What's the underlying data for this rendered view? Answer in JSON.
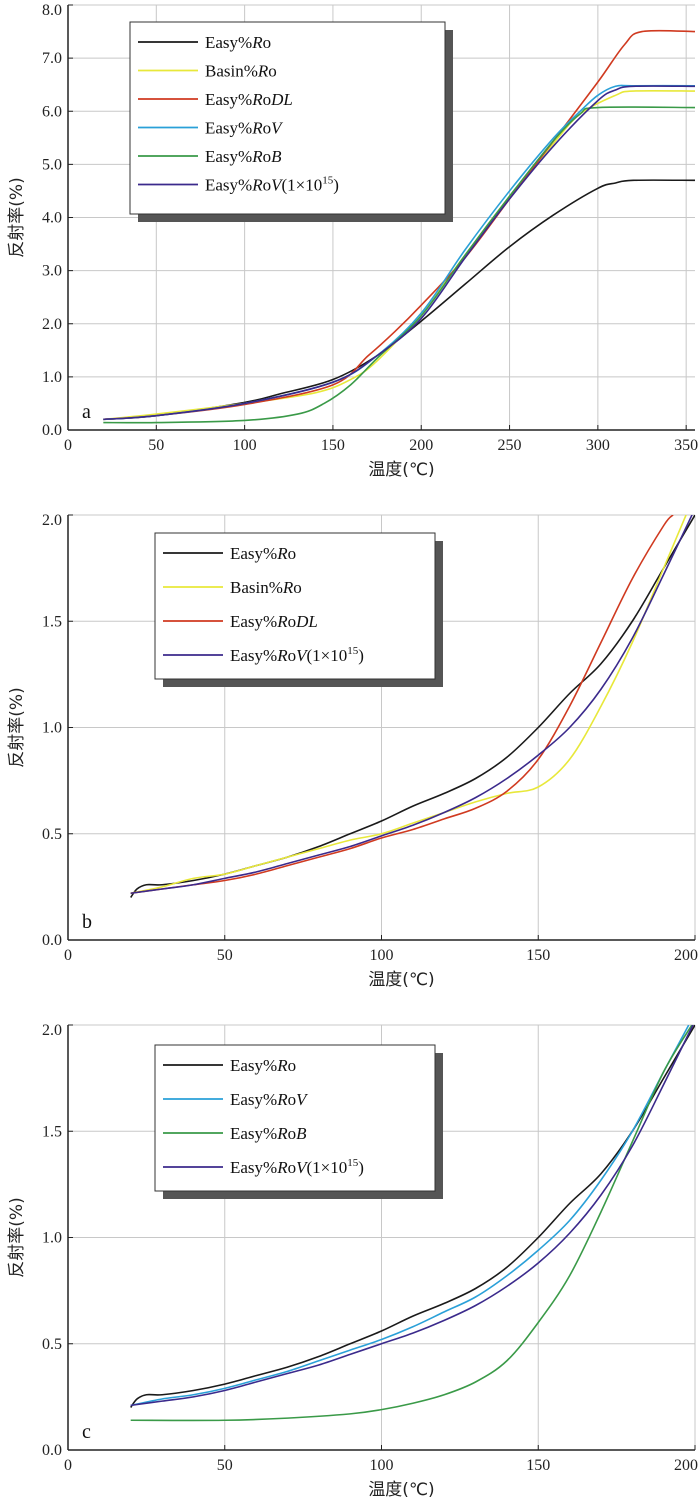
{
  "chart_data": [
    {
      "panel": "a",
      "type": "line",
      "xlabel": "温度(℃)",
      "ylabel": "反射率(%)",
      "xlim": [
        0,
        355
      ],
      "ylim": [
        0,
        8
      ],
      "xticks": [
        0,
        50,
        100,
        150,
        200,
        250,
        300,
        350
      ],
      "yticks": [
        0,
        1,
        2,
        3,
        4,
        5,
        6,
        7,
        8
      ],
      "ytick_labels": [
        "0.0",
        "1.0",
        "2.0",
        "3.0",
        "4.0",
        "5.0",
        "6.0",
        "7.0",
        "8.0"
      ],
      "grid": true,
      "legend_position": "top-left",
      "series": [
        {
          "name": "Easy%Ro",
          "italic_part": "Ro",
          "suffix": "",
          "color": "#1a1a1a",
          "x": [
            20,
            50,
            100,
            120,
            150,
            175,
            200,
            225,
            250,
            275,
            300,
            310,
            320,
            355
          ],
          "y": [
            0.2,
            0.27,
            0.52,
            0.68,
            0.95,
            1.4,
            2.05,
            2.75,
            3.45,
            4.05,
            4.55,
            4.65,
            4.7,
            4.7
          ]
        },
        {
          "name": "Basin%Ro",
          "italic_part": "Ro",
          "suffix": "",
          "color": "#e8e83a",
          "x": [
            20,
            50,
            100,
            140,
            160,
            175,
            200,
            225,
            250,
            275,
            290,
            310,
            320,
            355
          ],
          "y": [
            0.2,
            0.3,
            0.5,
            0.7,
            0.95,
            1.3,
            2.2,
            3.3,
            4.4,
            5.4,
            5.95,
            6.3,
            6.38,
            6.38
          ]
        },
        {
          "name": "Easy%RoDL",
          "italic_part": "RoDL",
          "suffix": "",
          "color": "#d03a20",
          "x": [
            20,
            50,
            100,
            150,
            170,
            185,
            200,
            225,
            250,
            275,
            300,
            315,
            325,
            355
          ],
          "y": [
            0.2,
            0.27,
            0.48,
            0.85,
            1.4,
            1.85,
            2.35,
            3.25,
            4.35,
            5.45,
            6.55,
            7.25,
            7.5,
            7.5
          ]
        },
        {
          "name": "Easy%RoV",
          "italic_part": "RoV",
          "suffix": "",
          "color": "#2aa0d8",
          "x": [
            20,
            50,
            100,
            150,
            175,
            200,
            225,
            250,
            275,
            290,
            300,
            310,
            320,
            355
          ],
          "y": [
            0.2,
            0.27,
            0.5,
            0.9,
            1.4,
            2.2,
            3.4,
            4.5,
            5.5,
            6.0,
            6.3,
            6.47,
            6.48,
            6.48
          ]
        },
        {
          "name": "Easy%RoB",
          "italic_part": "RoB",
          "suffix": "",
          "color": "#3a9a48",
          "x": [
            20,
            50,
            100,
            130,
            145,
            160,
            175,
            200,
            225,
            250,
            275,
            290,
            300,
            355
          ],
          "y": [
            0.14,
            0.14,
            0.18,
            0.3,
            0.5,
            0.85,
            1.35,
            2.15,
            3.3,
            4.4,
            5.45,
            5.95,
            6.07,
            6.07
          ]
        },
        {
          "name": "Easy%RoV(1×10",
          "italic_part": "RoV",
          "suffix": "(1×10",
          "sup": "15",
          "close": ")",
          "color": "#3b2a8c",
          "x": [
            20,
            50,
            100,
            150,
            175,
            200,
            225,
            250,
            275,
            300,
            310,
            320,
            355
          ],
          "y": [
            0.2,
            0.27,
            0.5,
            0.9,
            1.4,
            2.1,
            3.25,
            4.35,
            5.35,
            6.2,
            6.4,
            6.47,
            6.47
          ]
        }
      ]
    },
    {
      "panel": "b",
      "type": "line",
      "xlabel": "温度(℃)",
      "ylabel": "反射率(%)",
      "xlim": [
        0,
        200
      ],
      "ylim": [
        0,
        2
      ],
      "xticks": [
        0,
        50,
        100,
        150,
        200
      ],
      "yticks": [
        0,
        0.5,
        1,
        1.5,
        2
      ],
      "ytick_labels": [
        "0.0",
        "0.5",
        "1.0",
        "1.5",
        "2.0"
      ],
      "grid": true,
      "legend_position": "top-left",
      "series": [
        {
          "name": "Easy%Ro",
          "italic_part": "Ro",
          "suffix": "",
          "color": "#1a1a1a",
          "x": [
            20,
            22,
            25,
            30,
            40,
            50,
            60,
            70,
            80,
            90,
            100,
            110,
            120,
            130,
            140,
            150,
            160,
            170,
            180,
            190,
            200
          ],
          "y": [
            0.2,
            0.24,
            0.26,
            0.26,
            0.28,
            0.31,
            0.35,
            0.39,
            0.44,
            0.5,
            0.56,
            0.63,
            0.69,
            0.76,
            0.86,
            1.0,
            1.16,
            1.3,
            1.5,
            1.75,
            2.0
          ]
        },
        {
          "name": "Basin%Ro",
          "italic_part": "Ro",
          "suffix": "",
          "color": "#e8e83a",
          "x": [
            20,
            30,
            40,
            50,
            60,
            70,
            80,
            90,
            100,
            110,
            120,
            130,
            140,
            150,
            160,
            170,
            180,
            190,
            200
          ],
          "y": [
            0.22,
            0.25,
            0.29,
            0.31,
            0.35,
            0.39,
            0.43,
            0.47,
            0.5,
            0.55,
            0.6,
            0.65,
            0.69,
            0.72,
            0.85,
            1.1,
            1.4,
            1.75,
            2.1
          ]
        },
        {
          "name": "Easy%RoDL",
          "italic_part": "RoDL",
          "suffix": "",
          "color": "#d03a20",
          "x": [
            20,
            30,
            40,
            50,
            60,
            70,
            80,
            90,
            100,
            110,
            120,
            130,
            140,
            150,
            160,
            170,
            180,
            190,
            193
          ],
          "y": [
            0.22,
            0.24,
            0.26,
            0.28,
            0.31,
            0.35,
            0.39,
            0.43,
            0.48,
            0.52,
            0.57,
            0.62,
            0.7,
            0.85,
            1.1,
            1.4,
            1.7,
            1.95,
            2.0
          ]
        },
        {
          "name": "Easy%RoV(1×10",
          "italic_part": "RoV",
          "suffix": "(1×10",
          "sup": "15",
          "close": ")",
          "color": "#3b2a8c",
          "x": [
            20,
            30,
            40,
            50,
            60,
            70,
            80,
            90,
            100,
            110,
            120,
            130,
            140,
            150,
            160,
            170,
            180,
            190,
            200
          ],
          "y": [
            0.22,
            0.24,
            0.26,
            0.29,
            0.32,
            0.36,
            0.4,
            0.44,
            0.49,
            0.54,
            0.6,
            0.67,
            0.76,
            0.87,
            1.0,
            1.18,
            1.42,
            1.72,
            2.03
          ]
        }
      ]
    },
    {
      "panel": "c",
      "type": "line",
      "xlabel": "温度(℃)",
      "ylabel": "反射率(%)",
      "xlim": [
        0,
        200
      ],
      "ylim": [
        0,
        2
      ],
      "xticks": [
        0,
        50,
        100,
        150,
        200
      ],
      "yticks": [
        0,
        0.5,
        1,
        1.5,
        2
      ],
      "ytick_labels": [
        "0.0",
        "0.5",
        "1.0",
        "1.5",
        "2.0"
      ],
      "grid": true,
      "legend_position": "top-left",
      "series": [
        {
          "name": "Easy%Ro",
          "italic_part": "Ro",
          "suffix": "",
          "color": "#1a1a1a",
          "x": [
            20,
            22,
            25,
            30,
            40,
            50,
            60,
            70,
            80,
            90,
            100,
            110,
            120,
            130,
            140,
            150,
            160,
            170,
            180,
            190,
            200
          ],
          "y": [
            0.2,
            0.24,
            0.26,
            0.26,
            0.28,
            0.31,
            0.35,
            0.39,
            0.44,
            0.5,
            0.56,
            0.63,
            0.69,
            0.76,
            0.86,
            1.0,
            1.16,
            1.3,
            1.5,
            1.75,
            2.0
          ]
        },
        {
          "name": "Easy%RoV",
          "italic_part": "RoV",
          "suffix": "",
          "color": "#2aa0d8",
          "x": [
            20,
            30,
            40,
            50,
            60,
            70,
            80,
            90,
            100,
            110,
            120,
            130,
            140,
            150,
            160,
            170,
            180,
            190,
            198
          ],
          "y": [
            0.21,
            0.24,
            0.26,
            0.29,
            0.33,
            0.37,
            0.42,
            0.47,
            0.52,
            0.58,
            0.65,
            0.72,
            0.82,
            0.94,
            1.08,
            1.27,
            1.5,
            1.78,
            2.0
          ]
        },
        {
          "name": "Easy%RoB",
          "italic_part": "RoB",
          "suffix": "",
          "color": "#3a9a48",
          "x": [
            20,
            50,
            70,
            90,
            100,
            110,
            120,
            130,
            140,
            150,
            160,
            170,
            180,
            190,
            199
          ],
          "y": [
            0.14,
            0.14,
            0.15,
            0.17,
            0.19,
            0.22,
            0.26,
            0.32,
            0.42,
            0.6,
            0.82,
            1.12,
            1.45,
            1.78,
            2.0
          ]
        },
        {
          "name": "Easy%RoV(1×10",
          "italic_part": "RoV",
          "suffix": "(1×10",
          "sup": "15",
          "close": ")",
          "color": "#3b2a8c",
          "x": [
            20,
            30,
            40,
            50,
            60,
            70,
            80,
            90,
            100,
            110,
            120,
            130,
            140,
            150,
            160,
            170,
            180,
            190,
            200
          ],
          "y": [
            0.21,
            0.23,
            0.25,
            0.28,
            0.32,
            0.36,
            0.4,
            0.45,
            0.5,
            0.55,
            0.61,
            0.68,
            0.77,
            0.88,
            1.02,
            1.2,
            1.43,
            1.72,
            2.02
          ]
        }
      ]
    }
  ]
}
